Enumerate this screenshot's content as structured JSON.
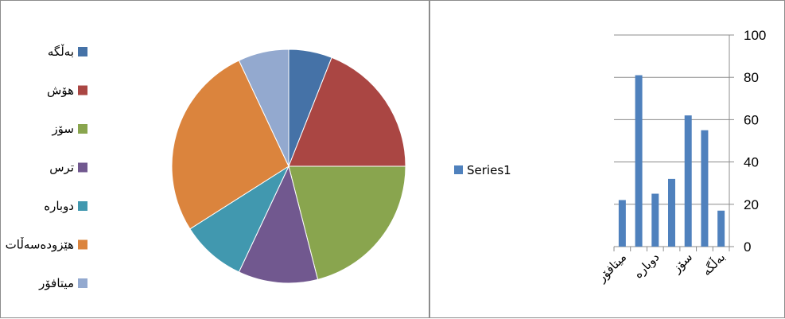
{
  "chart_data": [
    {
      "type": "pie",
      "title": "",
      "legend_position": "left",
      "categories": [
        "بەڵگە",
        "هۆش",
        "سۆز",
        "ترس",
        "دوبارە",
        "هێزودەسەڵات",
        "میتافۆر"
      ],
      "values": [
        6,
        19,
        21,
        11,
        9,
        27,
        7
      ],
      "colors": [
        "#4572a7",
        "#aa4643",
        "#89a54e",
        "#71588f",
        "#4198af",
        "#db843d",
        "#93a9cf"
      ]
    },
    {
      "type": "bar",
      "title": "",
      "categories": [
        "بەڵگە",
        "هۆش",
        "سۆز",
        "ترس",
        "دوبارە",
        "هێزودەسەڵات",
        "میتافۆر"
      ],
      "x_tick_labels_shown": [
        "بەڵگە",
        "سۆز",
        "دوبارە",
        "میتافۆر"
      ],
      "series": [
        {
          "name": "Series1",
          "values": [
            17,
            55,
            62,
            32,
            25,
            81,
            22
          ]
        }
      ],
      "category_order": "reversed",
      "ylim": [
        0,
        100
      ],
      "yticks": [
        "0",
        "20",
        "40",
        "60",
        "80",
        "100"
      ],
      "y_axis_position": "right",
      "grid": true,
      "legend_position": "left",
      "color": "#4f81bd"
    }
  ]
}
